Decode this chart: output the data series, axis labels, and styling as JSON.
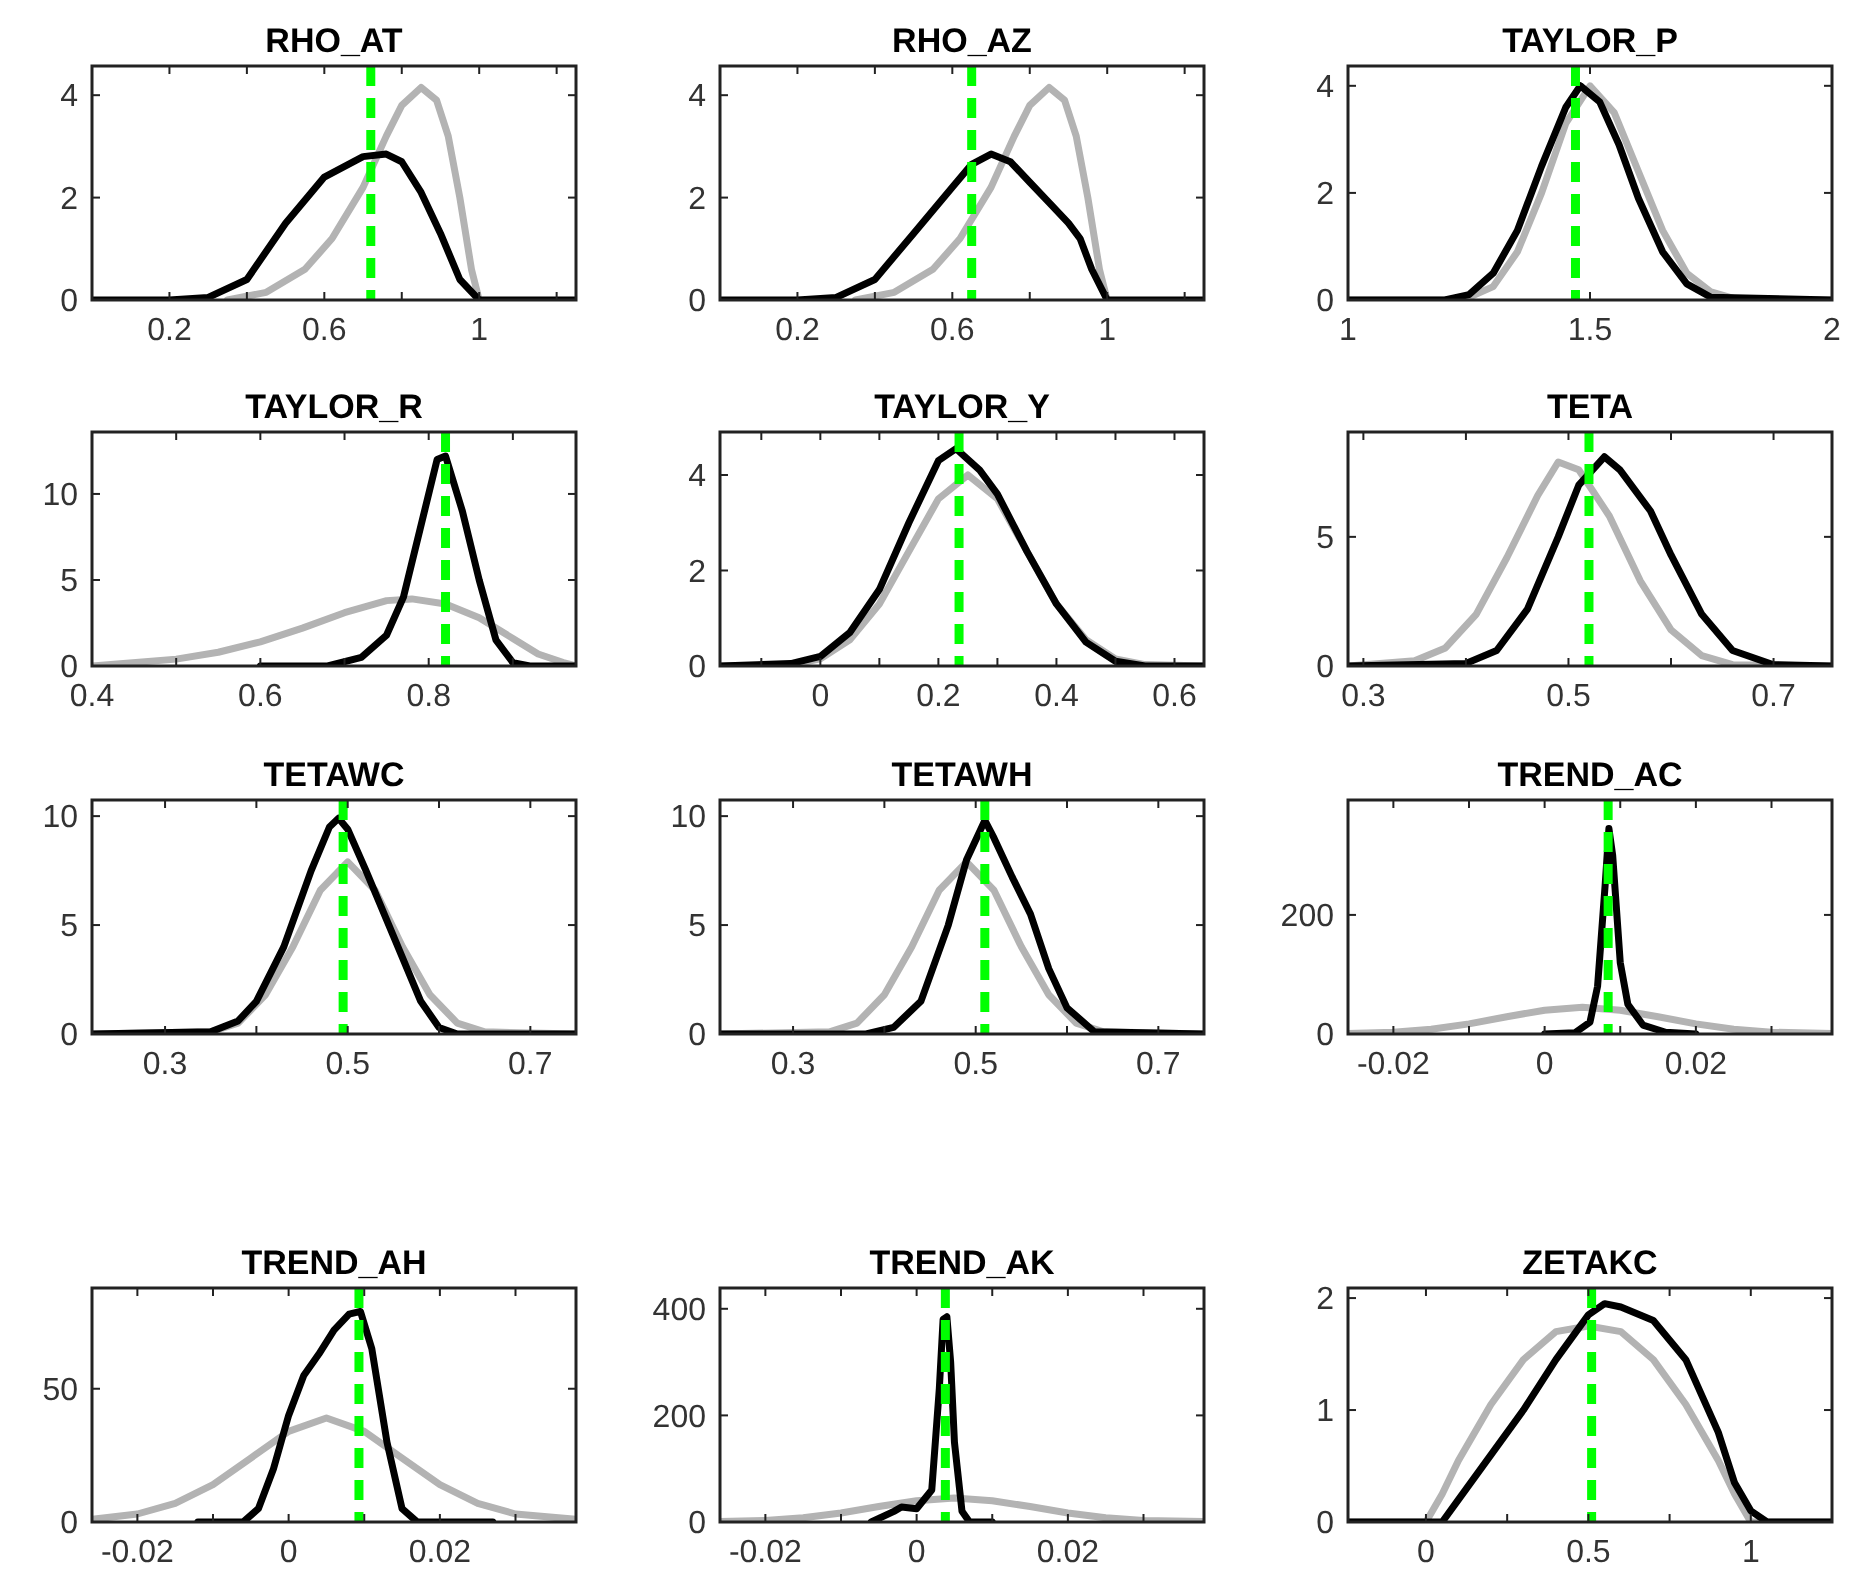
{
  "chart_data": [
    {
      "type": "line",
      "title": "RHO_AT",
      "xlim": [
        0,
        1.25
      ],
      "ylim": [
        0,
        4.57
      ],
      "xticks": [
        {
          "value": 0.2,
          "label": "0.2"
        },
        {
          "value": 0.4,
          "label": null
        },
        {
          "value": 0.6,
          "label": "0.6"
        },
        {
          "value": 0.8,
          "label": null
        },
        {
          "value": 1,
          "label": "1"
        },
        {
          "value": 1.2,
          "label": null
        }
      ],
      "yticks": [
        0,
        2,
        4
      ],
      "series": [
        {
          "color": "#b3b3b3",
          "x": [
            0.35,
            0.45,
            0.55,
            0.62,
            0.7,
            0.76,
            0.8,
            0.85,
            0.89,
            0.92,
            0.95,
            0.98,
            1.0
          ],
          "values": [
            0,
            0.15,
            0.6,
            1.2,
            2.2,
            3.2,
            3.8,
            4.15,
            3.9,
            3.2,
            2.0,
            0.6,
            0
          ]
        },
        {
          "color": "#000000",
          "x": [
            0,
            0.2,
            0.3,
            0.4,
            0.5,
            0.6,
            0.7,
            0.76,
            0.8,
            0.85,
            0.9,
            0.95,
            1.0,
            1.25
          ],
          "values": [
            0,
            0,
            0.05,
            0.4,
            1.5,
            2.4,
            2.8,
            2.85,
            2.7,
            2.1,
            1.3,
            0.4,
            0,
            0
          ]
        }
      ],
      "ref_lines": [
        {
          "axis": "x",
          "value": 0.72,
          "color": "#00ff00",
          "line_style": "dashed"
        }
      ]
    },
    {
      "type": "line",
      "title": "RHO_AZ",
      "xlim": [
        0,
        1.25
      ],
      "ylim": [
        0,
        4.57
      ],
      "xticks": [
        {
          "value": 0.2,
          "label": "0.2"
        },
        {
          "value": 0.4,
          "label": null
        },
        {
          "value": 0.6,
          "label": "0.6"
        },
        {
          "value": 0.8,
          "label": null
        },
        {
          "value": 1,
          "label": "1"
        },
        {
          "value": 1.2,
          "label": null
        }
      ],
      "yticks": [
        0,
        2,
        4
      ],
      "series": [
        {
          "color": "#b3b3b3",
          "x": [
            0.35,
            0.45,
            0.55,
            0.62,
            0.7,
            0.76,
            0.8,
            0.85,
            0.89,
            0.92,
            0.95,
            0.98,
            1.0
          ],
          "values": [
            0,
            0.15,
            0.6,
            1.2,
            2.2,
            3.2,
            3.8,
            4.15,
            3.9,
            3.2,
            2.0,
            0.6,
            0
          ]
        },
        {
          "color": "#000000",
          "x": [
            0,
            0.2,
            0.3,
            0.4,
            0.5,
            0.6,
            0.65,
            0.7,
            0.75,
            0.8,
            0.85,
            0.9,
            0.93,
            0.96,
            1.0,
            1.25
          ],
          "values": [
            0,
            0,
            0.05,
            0.4,
            1.3,
            2.2,
            2.65,
            2.85,
            2.7,
            2.3,
            1.9,
            1.5,
            1.2,
            0.6,
            0,
            0
          ]
        }
      ],
      "ref_lines": [
        {
          "axis": "x",
          "value": 0.65,
          "color": "#00ff00",
          "line_style": "dashed"
        }
      ]
    },
    {
      "type": "line",
      "title": "TAYLOR_P",
      "xlim": [
        1,
        2
      ],
      "ylim": [
        0,
        4.37
      ],
      "xticks": [
        1,
        1.5,
        2
      ],
      "yticks": [
        0,
        2,
        4
      ],
      "series": [
        {
          "color": "#b3b3b3",
          "x": [
            1,
            1.2,
            1.25,
            1.3,
            1.35,
            1.4,
            1.45,
            1.5,
            1.55,
            1.6,
            1.65,
            1.7,
            1.75,
            1.8,
            2
          ],
          "values": [
            0,
            0,
            0.05,
            0.25,
            0.9,
            2.0,
            3.3,
            4.0,
            3.5,
            2.4,
            1.3,
            0.5,
            0.15,
            0.02,
            0
          ]
        },
        {
          "color": "#000000",
          "x": [
            1,
            1.2,
            1.25,
            1.3,
            1.35,
            1.4,
            1.45,
            1.48,
            1.52,
            1.56,
            1.6,
            1.65,
            1.7,
            1.75,
            2
          ],
          "values": [
            0,
            0,
            0.1,
            0.5,
            1.3,
            2.5,
            3.6,
            4.0,
            3.7,
            2.9,
            1.9,
            0.9,
            0.3,
            0.05,
            0
          ]
        }
      ],
      "ref_lines": [
        {
          "axis": "x",
          "value": 1.47,
          "color": "#00ff00",
          "line_style": "dashed"
        }
      ]
    },
    {
      "type": "line",
      "title": "TAYLOR_R",
      "xlim": [
        0.4,
        0.975
      ],
      "ylim": [
        0,
        13.6
      ],
      "xticks": [
        0.4,
        {
          "value": 0.5,
          "label": null
        },
        0.6,
        {
          "value": 0.7,
          "label": null
        },
        0.8,
        {
          "value": 0.9,
          "label": null
        }
      ],
      "yticks": [
        0,
        5,
        10
      ],
      "series": [
        {
          "color": "#b3b3b3",
          "x": [
            0.4,
            0.5,
            0.55,
            0.6,
            0.65,
            0.7,
            0.75,
            0.78,
            0.82,
            0.86,
            0.9,
            0.93,
            0.96,
            0.975
          ],
          "values": [
            0,
            0.4,
            0.8,
            1.4,
            2.2,
            3.1,
            3.8,
            3.9,
            3.6,
            2.8,
            1.6,
            0.7,
            0.2,
            0
          ]
        },
        {
          "color": "#000000",
          "x": [
            0.6,
            0.68,
            0.72,
            0.75,
            0.77,
            0.79,
            0.81,
            0.82,
            0.84,
            0.86,
            0.88,
            0.9,
            0.92,
            0.975
          ],
          "values": [
            0,
            0,
            0.5,
            1.8,
            4,
            8,
            12,
            12.2,
            9,
            5,
            1.5,
            0.2,
            0,
            0
          ]
        }
      ],
      "ref_lines": [
        {
          "axis": "x",
          "value": 0.82,
          "color": "#00ff00",
          "line_style": "dashed"
        }
      ]
    },
    {
      "type": "line",
      "title": "TAYLOR_Y",
      "xlim": [
        -0.17,
        0.65
      ],
      "ylim": [
        0,
        4.9
      ],
      "xticks": [
        {
          "value": -0.1,
          "label": null
        },
        0,
        {
          "value": 0.1,
          "label": null
        },
        0.2,
        {
          "value": 0.3,
          "label": null
        },
        0.4,
        {
          "value": 0.5,
          "label": null
        },
        0.6
      ],
      "yticks": [
        0,
        2,
        4
      ],
      "series": [
        {
          "color": "#b3b3b3",
          "x": [
            -0.17,
            -0.05,
            0,
            0.05,
            0.1,
            0.15,
            0.2,
            0.25,
            0.3,
            0.35,
            0.4,
            0.45,
            0.5,
            0.55,
            0.65
          ],
          "values": [
            0,
            0.02,
            0.15,
            0.55,
            1.3,
            2.4,
            3.5,
            4.0,
            3.5,
            2.4,
            1.3,
            0.55,
            0.15,
            0.03,
            0
          ]
        },
        {
          "color": "#000000",
          "x": [
            -0.17,
            -0.05,
            0,
            0.05,
            0.1,
            0.15,
            0.2,
            0.23,
            0.27,
            0.3,
            0.35,
            0.4,
            0.45,
            0.5,
            0.55,
            0.65
          ],
          "values": [
            0,
            0.05,
            0.2,
            0.7,
            1.6,
            3.0,
            4.3,
            4.55,
            4.1,
            3.6,
            2.4,
            1.3,
            0.5,
            0.1,
            0,
            0
          ]
        }
      ],
      "ref_lines": [
        {
          "axis": "x",
          "value": 0.235,
          "color": "#00ff00",
          "line_style": "dashed"
        }
      ]
    },
    {
      "type": "line",
      "title": "TETA",
      "xlim": [
        0.285,
        0.757
      ],
      "ylim": [
        0,
        9.06
      ],
      "xticks": [
        0.3,
        {
          "value": 0.4,
          "label": null
        },
        0.5,
        {
          "value": 0.6,
          "label": null
        },
        0.7
      ],
      "yticks": [
        0,
        5
      ],
      "series": [
        {
          "color": "#b3b3b3",
          "x": [
            0.285,
            0.35,
            0.38,
            0.41,
            0.44,
            0.47,
            0.49,
            0.51,
            0.54,
            0.57,
            0.6,
            0.63,
            0.66,
            0.757
          ],
          "values": [
            0,
            0.2,
            0.7,
            2.0,
            4.2,
            6.6,
            7.9,
            7.6,
            5.8,
            3.3,
            1.4,
            0.4,
            0.05,
            0
          ]
        },
        {
          "color": "#000000",
          "x": [
            0.285,
            0.4,
            0.43,
            0.46,
            0.49,
            0.51,
            0.535,
            0.55,
            0.58,
            0.6,
            0.63,
            0.66,
            0.7,
            0.757
          ],
          "values": [
            0,
            0.1,
            0.6,
            2.2,
            5.0,
            7.0,
            8.1,
            7.6,
            6.0,
            4.3,
            2.0,
            0.6,
            0.05,
            0
          ]
        }
      ],
      "ref_lines": [
        {
          "axis": "x",
          "value": 0.52,
          "color": "#00ff00",
          "line_style": "dashed"
        }
      ]
    },
    {
      "type": "line",
      "title": "TETAWC",
      "xlim": [
        0.22,
        0.75
      ],
      "ylim": [
        0,
        10.74
      ],
      "xticks": [
        0.3,
        {
          "value": 0.4,
          "label": null
        },
        0.5,
        {
          "value": 0.6,
          "label": null
        },
        0.7
      ],
      "yticks": [
        0,
        5,
        10
      ],
      "series": [
        {
          "color": "#b3b3b3",
          "x": [
            0.22,
            0.35,
            0.38,
            0.41,
            0.44,
            0.47,
            0.5,
            0.53,
            0.56,
            0.59,
            0.62,
            0.65,
            0.75
          ],
          "values": [
            0,
            0.1,
            0.5,
            1.8,
            4,
            6.6,
            7.9,
            6.6,
            4,
            1.8,
            0.5,
            0.1,
            0
          ]
        },
        {
          "color": "#000000",
          "x": [
            0.22,
            0.35,
            0.38,
            0.4,
            0.43,
            0.46,
            0.48,
            0.49,
            0.5,
            0.52,
            0.55,
            0.58,
            0.6,
            0.62,
            0.75
          ],
          "values": [
            0,
            0.1,
            0.6,
            1.5,
            4,
            7.5,
            9.5,
            9.9,
            9.4,
            7.5,
            4.5,
            1.5,
            0.3,
            0,
            0
          ]
        }
      ],
      "ref_lines": [
        {
          "axis": "x",
          "value": 0.495,
          "color": "#00ff00",
          "line_style": "dashed"
        }
      ]
    },
    {
      "type": "line",
      "title": "TETAWH",
      "xlim": [
        0.22,
        0.75
      ],
      "ylim": [
        0,
        10.74
      ],
      "xticks": [
        0.3,
        {
          "value": 0.4,
          "label": null
        },
        0.5,
        {
          "value": 0.6,
          "label": null
        },
        0.7
      ],
      "yticks": [
        0,
        5,
        10
      ],
      "series": [
        {
          "color": "#b3b3b3",
          "x": [
            0.22,
            0.34,
            0.37,
            0.4,
            0.43,
            0.46,
            0.49,
            0.52,
            0.55,
            0.58,
            0.61,
            0.64,
            0.75
          ],
          "values": [
            0,
            0.1,
            0.5,
            1.8,
            4,
            6.6,
            7.9,
            6.6,
            4,
            1.8,
            0.5,
            0.1,
            0
          ]
        },
        {
          "color": "#000000",
          "x": [
            0.22,
            0.38,
            0.41,
            0.44,
            0.47,
            0.49,
            0.51,
            0.52,
            0.54,
            0.56,
            0.58,
            0.6,
            0.63,
            0.75
          ],
          "values": [
            0,
            0,
            0.3,
            1.5,
            5,
            8.0,
            9.8,
            9.0,
            7.2,
            5.5,
            3.0,
            1.2,
            0.1,
            0
          ]
        }
      ],
      "ref_lines": [
        {
          "axis": "x",
          "value": 0.51,
          "color": "#00ff00",
          "line_style": "dashed"
        }
      ]
    },
    {
      "type": "line",
      "title": "TREND_AC",
      "xlim": [
        -0.026,
        0.038
      ],
      "ylim": [
        0,
        393
      ],
      "xticks": [
        -0.02,
        {
          "value": -0.01,
          "label": null
        },
        0,
        {
          "value": 0.01,
          "label": null
        },
        0.02,
        {
          "value": 0.03,
          "label": null
        }
      ],
      "yticks": [
        0,
        200
      ],
      "series": [
        {
          "color": "#b3b3b3",
          "x": [
            -0.026,
            -0.02,
            -0.015,
            -0.01,
            -0.005,
            0,
            0.005,
            0.01,
            0.015,
            0.02,
            0.025,
            0.03,
            0.038
          ],
          "values": [
            1,
            3,
            8,
            17,
            29,
            40,
            45,
            40,
            29,
            17,
            8,
            3,
            1
          ]
        },
        {
          "color": "#000000",
          "x": [
            0,
            0.004,
            0.006,
            0.007,
            0.008,
            0.0085,
            0.009,
            0.01,
            0.011,
            0.013,
            0.016,
            0.02
          ],
          "values": [
            0,
            2,
            20,
            80,
            250,
            345,
            300,
            120,
            50,
            15,
            3,
            0
          ]
        }
      ],
      "ref_lines": [
        {
          "axis": "x",
          "value": 0.0084,
          "color": "#00ff00",
          "line_style": "dashed"
        }
      ]
    },
    {
      "type": "line",
      "title": "TREND_AH",
      "xlim": [
        -0.026,
        0.038
      ],
      "ylim": [
        0,
        87.8
      ],
      "xticks": [
        -0.02,
        {
          "value": -0.01,
          "label": null
        },
        0,
        {
          "value": 0.01,
          "label": null
        },
        0.02,
        {
          "value": 0.03,
          "label": null
        }
      ],
      "yticks": [
        0,
        50
      ],
      "series": [
        {
          "color": "#b3b3b3",
          "x": [
            -0.026,
            -0.02,
            -0.015,
            -0.01,
            -0.005,
            0,
            0.005,
            0.01,
            0.015,
            0.02,
            0.025,
            0.03,
            0.038
          ],
          "values": [
            1,
            3,
            7,
            14,
            24,
            34,
            39,
            34,
            24,
            14,
            7,
            3,
            1
          ]
        },
        {
          "color": "#000000",
          "x": [
            -0.012,
            -0.006,
            -0.004,
            -0.002,
            0,
            0.002,
            0.004,
            0.006,
            0.008,
            0.0095,
            0.011,
            0.013,
            0.015,
            0.017,
            0.02,
            0.027
          ],
          "values": [
            0,
            0,
            5,
            20,
            40,
            55,
            63,
            72,
            78,
            79,
            65,
            30,
            5,
            0,
            0,
            0
          ]
        }
      ],
      "ref_lines": [
        {
          "axis": "x",
          "value": 0.0093,
          "color": "#00ff00",
          "line_style": "dashed"
        }
      ]
    },
    {
      "type": "line",
      "title": "TREND_AK",
      "xlim": [
        -0.026,
        0.038
      ],
      "ylim": [
        0,
        439
      ],
      "xticks": [
        -0.02,
        {
          "value": -0.01,
          "label": null
        },
        0,
        {
          "value": 0.01,
          "label": null
        },
        0.02,
        {
          "value": 0.03,
          "label": null
        }
      ],
      "yticks": [
        0,
        200,
        400
      ],
      "series": [
        {
          "color": "#b3b3b3",
          "x": [
            -0.026,
            -0.02,
            -0.015,
            -0.01,
            -0.005,
            0,
            0.005,
            0.01,
            0.015,
            0.02,
            0.025,
            0.03,
            0.038
          ],
          "values": [
            1,
            3,
            8,
            17,
            29,
            40,
            45,
            40,
            29,
            17,
            8,
            3,
            1
          ]
        },
        {
          "color": "#000000",
          "x": [
            -0.006,
            -0.003,
            -0.002,
            0,
            0.002,
            0.003,
            0.0035,
            0.004,
            0.0045,
            0.005,
            0.006,
            0.007,
            0.01
          ],
          "values": [
            0,
            20,
            28,
            25,
            60,
            250,
            380,
            385,
            300,
            150,
            20,
            0,
            0
          ]
        }
      ],
      "ref_lines": [
        {
          "axis": "x",
          "value": 0.0038,
          "color": "#00ff00",
          "line_style": "dashed"
        }
      ]
    },
    {
      "type": "line",
      "title": "ZETAKC",
      "xlim": [
        -0.24,
        1.25
      ],
      "ylim": [
        0,
        2.09
      ],
      "xticks": [
        0,
        {
          "value": 0.25,
          "label": null
        },
        0.5,
        {
          "value": 0.75,
          "label": null
        },
        1
      ],
      "yticks": [
        0,
        1,
        2
      ],
      "series": [
        {
          "color": "#b3b3b3",
          "x": [
            -0.24,
            0,
            0.05,
            0.1,
            0.2,
            0.3,
            0.4,
            0.5,
            0.6,
            0.7,
            0.8,
            0.9,
            0.95,
            1,
            1.25
          ],
          "values": [
            0,
            0,
            0.25,
            0.55,
            1.05,
            1.45,
            1.7,
            1.75,
            1.7,
            1.45,
            1.05,
            0.55,
            0.25,
            0,
            0
          ]
        },
        {
          "color": "#000000",
          "x": [
            -0.24,
            0.05,
            0.1,
            0.2,
            0.3,
            0.4,
            0.5,
            0.55,
            0.6,
            0.7,
            0.8,
            0.9,
            0.95,
            1.0,
            1.05,
            1.25
          ],
          "values": [
            0,
            0,
            0.2,
            0.6,
            1.0,
            1.45,
            1.85,
            1.95,
            1.92,
            1.8,
            1.45,
            0.8,
            0.35,
            0.1,
            0,
            0
          ]
        }
      ],
      "ref_lines": [
        {
          "axis": "x",
          "value": 0.51,
          "color": "#00ff00",
          "line_style": "dashed"
        }
      ]
    }
  ]
}
